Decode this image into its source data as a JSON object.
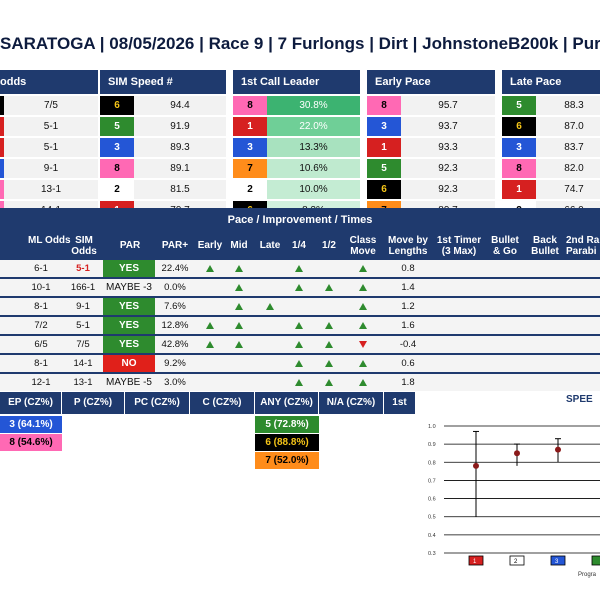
{
  "header": {
    "title": "SARATOGA | 08/05/2026 | Race 9 | 7 Furlongs | Dirt | JohnstoneB200k | Pur"
  },
  "colors": {
    "navy": "#1f3a6e",
    "green": "#2e8b2e",
    "red": "#d62020",
    "yes_green": "#2e8b2e",
    "no_red": "#e0201a"
  },
  "panels": [
    {
      "title": "odds",
      "rows": [
        {
          "badge": "",
          "badge_bg": "#000000",
          "badge_fg": "#f5c518",
          "value": "7/5"
        },
        {
          "badge": "",
          "badge_bg": "#d62020",
          "badge_fg": "#ffffff",
          "value": "5-1"
        },
        {
          "badge": "",
          "badge_bg": "#d62020",
          "badge_fg": "#ffffff",
          "value": "5-1"
        },
        {
          "badge": "",
          "badge_bg": "#2456d6",
          "badge_fg": "#ffffff",
          "value": "9-1"
        },
        {
          "badge": "",
          "badge_bg": "#ff69b4",
          "badge_fg": "#000000",
          "value": "13-1"
        },
        {
          "badge": "",
          "badge_bg": "#ff69b4",
          "badge_fg": "#000000",
          "value": "14-1"
        }
      ]
    },
    {
      "title": "SIM Speed #",
      "rows": [
        {
          "badge": "6",
          "badge_bg": "#000000",
          "badge_fg": "#f5c518",
          "value": "94.4"
        },
        {
          "badge": "5",
          "badge_bg": "#2e8b2e",
          "badge_fg": "#ffffff",
          "value": "91.9"
        },
        {
          "badge": "3",
          "badge_bg": "#2456d6",
          "badge_fg": "#ffffff",
          "value": "89.3"
        },
        {
          "badge": "8",
          "badge_bg": "#ff69b4",
          "badge_fg": "#000000",
          "value": "89.1"
        },
        {
          "badge": "2",
          "badge_bg": "#ffffff",
          "badge_fg": "#000000",
          "value": "81.5"
        },
        {
          "badge": "1",
          "badge_bg": "#d62020",
          "badge_fg": "#ffffff",
          "value": "79.7"
        }
      ]
    },
    {
      "title": "1st Call Leader",
      "rows": [
        {
          "badge": "8",
          "badge_bg": "#ff69b4",
          "badge_fg": "#000000",
          "value": "30.8%",
          "val_bg": "#3cb371",
          "val_fg": "#ffffff"
        },
        {
          "badge": "1",
          "badge_bg": "#d62020",
          "badge_fg": "#ffffff",
          "value": "22.0%",
          "val_bg": "#6fcf97",
          "val_fg": "#ffffff"
        },
        {
          "badge": "3",
          "badge_bg": "#2456d6",
          "badge_fg": "#ffffff",
          "value": "13.3%",
          "val_bg": "#a8e2bf",
          "val_fg": "#111111"
        },
        {
          "badge": "7",
          "badge_bg": "#ff8c1a",
          "badge_fg": "#000000",
          "value": "10.6%",
          "val_bg": "#bfeacf",
          "val_fg": "#111111"
        },
        {
          "badge": "2",
          "badge_bg": "#ffffff",
          "badge_fg": "#000000",
          "value": "10.0%",
          "val_bg": "#c4ecd3",
          "val_fg": "#111111"
        },
        {
          "badge": "6",
          "badge_bg": "#000000",
          "badge_fg": "#f5c518",
          "value": "8.2%",
          "val_bg": "#d2f1de",
          "val_fg": "#111111"
        }
      ]
    },
    {
      "title": "Early Pace",
      "rows": [
        {
          "badge": "8",
          "badge_bg": "#ff69b4",
          "badge_fg": "#000000",
          "value": "95.7"
        },
        {
          "badge": "3",
          "badge_bg": "#2456d6",
          "badge_fg": "#ffffff",
          "value": "93.7"
        },
        {
          "badge": "1",
          "badge_bg": "#d62020",
          "badge_fg": "#ffffff",
          "value": "93.3"
        },
        {
          "badge": "5",
          "badge_bg": "#2e8b2e",
          "badge_fg": "#ffffff",
          "value": "92.3"
        },
        {
          "badge": "6",
          "badge_bg": "#000000",
          "badge_fg": "#f5c518",
          "value": "92.3"
        },
        {
          "badge": "7",
          "badge_bg": "#ff8c1a",
          "badge_fg": "#000000",
          "value": "89.7"
        }
      ]
    },
    {
      "title": "Late Pace",
      "rows": [
        {
          "badge": "5",
          "badge_bg": "#2e8b2e",
          "badge_fg": "#ffffff",
          "value": "88.3"
        },
        {
          "badge": "6",
          "badge_bg": "#000000",
          "badge_fg": "#f5c518",
          "value": "87.0"
        },
        {
          "badge": "3",
          "badge_bg": "#2456d6",
          "badge_fg": "#ffffff",
          "value": "83.7"
        },
        {
          "badge": "8",
          "badge_bg": "#ff69b4",
          "badge_fg": "#000000",
          "value": "82.0"
        },
        {
          "badge": "1",
          "badge_bg": "#d62020",
          "badge_fg": "#ffffff",
          "value": "74.7"
        },
        {
          "badge": "2",
          "badge_bg": "#ffffff",
          "badge_fg": "#000000",
          "value": "66.0"
        }
      ]
    }
  ],
  "pace_table": {
    "title": "Pace / Improvement / Times",
    "columns": {
      "ml": "ML Odds",
      "sim": "SIM Odds",
      "par": "PAR",
      "parplus": "PAR+",
      "early": "Early",
      "mid": "Mid",
      "late": "Late",
      "q14": "1/4",
      "q12": "1/2",
      "class": "Class Move",
      "move": "Move by Lengths",
      "timer": "1st Timer (3 Max)",
      "bullet_go": "Bullet & Go",
      "back_bullet": "Back Bullet",
      "second": "2nd Ra Parabi"
    },
    "rows": [
      {
        "ml": "6-1",
        "sim": "5-1",
        "sim_red": true,
        "par": "YES",
        "par_style": "yes",
        "parplus": "22.4%",
        "early": "up",
        "mid": "up",
        "late": "",
        "q14": "up",
        "q12": "",
        "class": "up",
        "move": "0.8"
      },
      {
        "ml": "10-1",
        "sim": "166-1",
        "sim_red": false,
        "par": "MAYBE -3",
        "par_style": "maybe",
        "parplus": "0.0%",
        "early": "",
        "mid": "up",
        "late": "",
        "q14": "up",
        "q12": "up",
        "class": "up",
        "move": "1.4"
      },
      {
        "ml": "8-1",
        "sim": "9-1",
        "sim_red": false,
        "par": "YES",
        "par_style": "yes",
        "parplus": "7.6%",
        "early": "",
        "mid": "up",
        "late": "up",
        "q14": "",
        "q12": "",
        "class": "up",
        "move": "1.2"
      },
      {
        "ml": "7/2",
        "sim": "5-1",
        "sim_red": false,
        "par": "YES",
        "par_style": "yes",
        "parplus": "12.8%",
        "early": "up",
        "mid": "up",
        "late": "",
        "q14": "up",
        "q12": "up",
        "class": "up",
        "move": "1.6"
      },
      {
        "ml": "6/5",
        "sim": "7/5",
        "sim_red": false,
        "par": "YES",
        "par_style": "yes",
        "parplus": "42.8%",
        "early": "up",
        "mid": "up",
        "late": "",
        "q14": "up",
        "q12": "up",
        "class": "down",
        "move": "-0.4"
      },
      {
        "ml": "8-1",
        "sim": "14-1",
        "sim_red": false,
        "par": "NO",
        "par_style": "no",
        "parplus": "9.2%",
        "early": "",
        "mid": "",
        "late": "",
        "q14": "up",
        "q12": "up",
        "class": "up",
        "move": "0.6"
      },
      {
        "ml": "12-1",
        "sim": "13-1",
        "sim_red": false,
        "par": "MAYBE -5",
        "par_style": "maybe",
        "parplus": "3.0%",
        "early": "",
        "mid": "",
        "late": "",
        "q14": "up",
        "q12": "up",
        "class": "up",
        "move": "1.8"
      }
    ]
  },
  "run_style": {
    "headers": [
      "EP (CZ%)",
      "P (CZ%)",
      "PC (CZ%)",
      "C (CZ%)",
      "ANY (CZ%)",
      "N/A (CZ%)",
      "1st"
    ],
    "ep": [
      {
        "text": "3 (64.1%)",
        "bg": "#2456d6",
        "fg": "#ffffff"
      },
      {
        "text": "8 (54.6%)",
        "bg": "#ff69b4",
        "fg": "#000000"
      }
    ],
    "any": [
      {
        "text": "5 (72.8%)",
        "bg": "#2e8b2e",
        "fg": "#ffffff"
      },
      {
        "text": "6 (88.8%)",
        "bg": "#000000",
        "fg": "#f5c518"
      },
      {
        "text": "7 (52.0%)",
        "bg": "#ff8c1a",
        "fg": "#000000"
      }
    ]
  },
  "speed_chart": {
    "title": "SPEE",
    "xlabel": "Progra",
    "chart_data": {
      "type": "scatter",
      "y_ticks": [
        "1.0",
        "0.9",
        "0.8",
        "0.7",
        "0.6",
        "0.5",
        "0.4",
        "0.3"
      ],
      "ylim": [
        0.3,
        1.0
      ],
      "categories": [
        "1",
        "2",
        "3"
      ],
      "points": [
        {
          "program": "1",
          "value": 0.78,
          "low": 0.5,
          "high": 0.97
        },
        {
          "program": "2",
          "value": 0.85,
          "low": 0.78,
          "high": 0.9
        },
        {
          "program": "3",
          "value": 0.87,
          "low": 0.8,
          "high": 0.93
        }
      ],
      "category_colors": [
        "#d62020",
        "#ffffff",
        "#2456d6",
        "#2e8b2e"
      ]
    }
  }
}
